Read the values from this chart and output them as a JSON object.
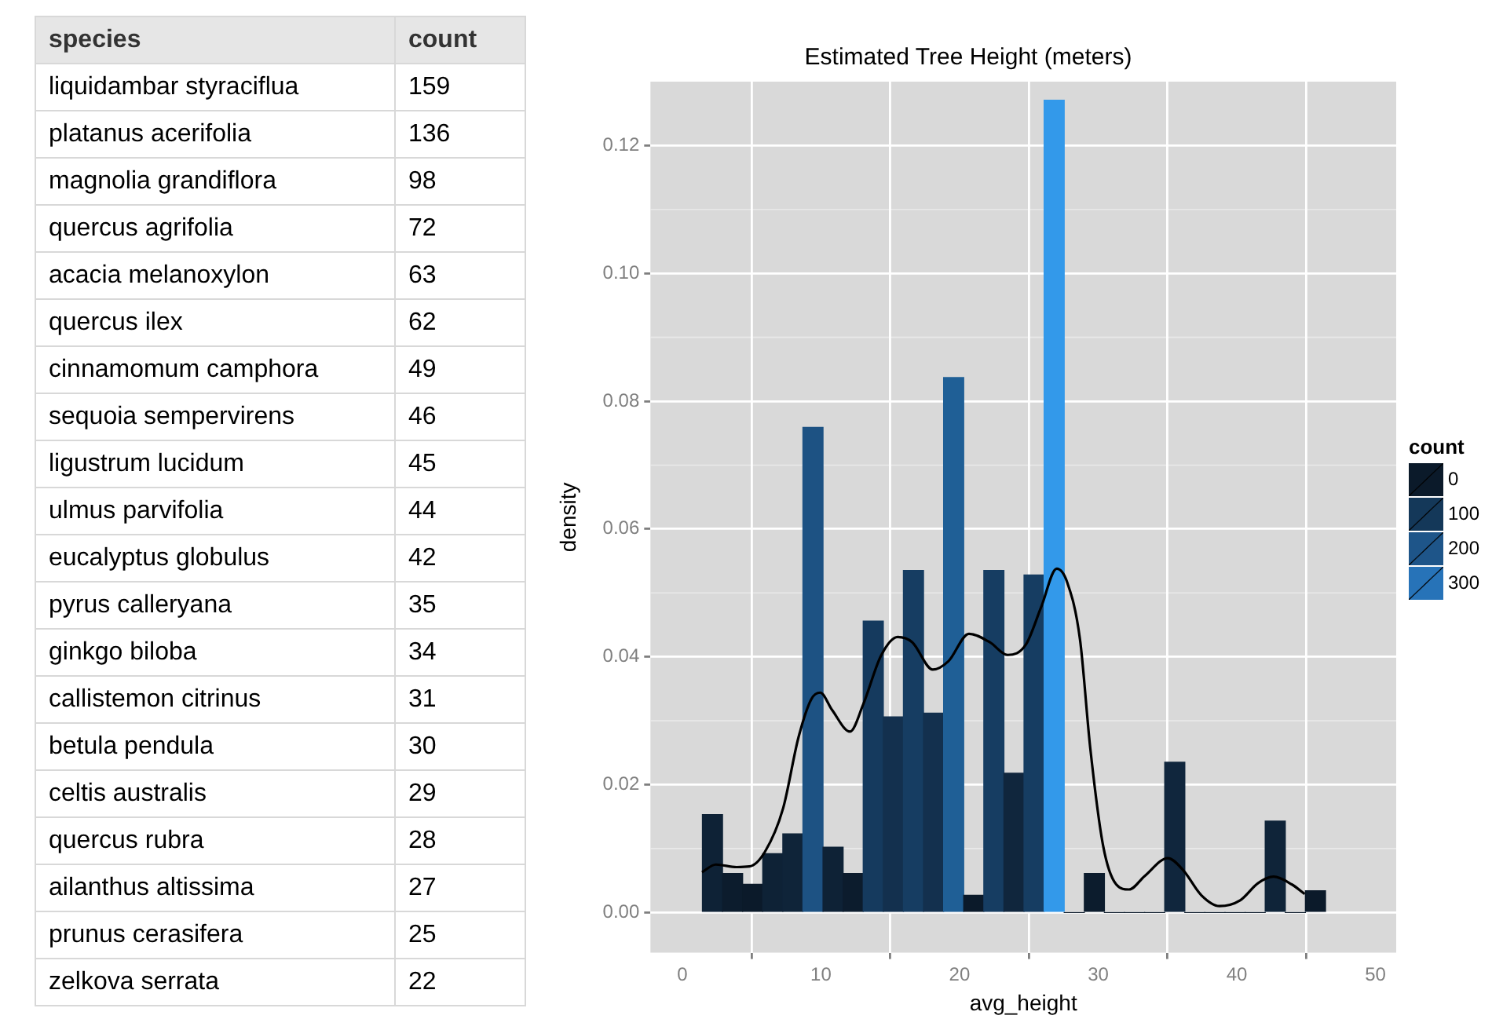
{
  "chart_data": [
    {
      "type": "other",
      "xlabel": "species",
      "ylabel": "count",
      "data_labels": true,
      "categories": [
        "liquidambar styraciflua",
        "platanus acerifolia",
        "magnolia grandiflora",
        "quercus agrifolia",
        "acacia melanoxylon",
        "quercus ilex",
        "cinnamomum camphora",
        "sequoia sempervirens",
        "ligustrum lucidum",
        "ulmus parvifolia",
        "eucalyptus globulus",
        "pyrus calleryana",
        "ginkgo biloba",
        "callistemon citrinus",
        "betula pendula",
        "celtis australis",
        "quercus rubra",
        "ailanthus altissima",
        "prunus cerasifera",
        "zelkova serrata"
      ],
      "values": [
        159,
        136,
        98,
        72,
        63,
        62,
        49,
        46,
        45,
        44,
        42,
        35,
        34,
        31,
        30,
        29,
        28,
        27,
        25,
        22
      ]
    },
    {
      "type": "histogram",
      "title": "Estimated Tree Height (meters)",
      "xlabel": "avg_height",
      "ylabel": "density",
      "clabel": "count",
      "bins": [
        1.45,
        2.9,
        4.35,
        5.8,
        7.25,
        8.7,
        10.15,
        11.6,
        13.05,
        14.5,
        15.95,
        17.4,
        18.85,
        20.3,
        21.75,
        23.2,
        24.65,
        26.1,
        27.55,
        29,
        30.45,
        31.9,
        33.35,
        34.8,
        36.25,
        37.7,
        39.15,
        40.6,
        42.05,
        43.5,
        44.95,
        46.4
      ],
      "values": [
        0.0153,
        0.0061,
        0.0044,
        0.0092,
        0.0123,
        0.0759,
        0.0102,
        0.0061,
        0.0456,
        0.0306,
        0.0535,
        0.0312,
        0.0837,
        0.0027,
        0.0535,
        0.0218,
        0.0528,
        0.1271,
        0,
        0.0061,
        0,
        0,
        0,
        0.0235,
        0,
        0,
        0,
        0,
        0.0143,
        0,
        0.0034
      ],
      "colors": [
        "#0e2236",
        "#0c1c2d",
        "#0b1a2a",
        "#0e2236",
        "#0f2439",
        "#1d5283",
        "#0e2236",
        "#0c1c2d",
        "#153a5e",
        "#13304e",
        "#163d62",
        "#13304e",
        "#1f5f96",
        "#0b1a2a",
        "#163d62",
        "#10263d",
        "#163d62",
        "#3399ea",
        "#0b1a2a",
        "#0c1c2d",
        "#0b1a2a",
        "#0b1a2a",
        "#0b1a2a",
        "#10263d",
        "#0b1a2a",
        "#0b1a2a",
        "#0b1a2a",
        "#0b1a2a",
        "#0f2439",
        "#0b1a2a",
        "#0b1a2a"
      ],
      "cticks": [
        0,
        100,
        200,
        300
      ],
      "series": [
        {
          "type": "line",
          "color": "#000000",
          "x": [
            1.42,
            2.42,
            3.91,
            4.84,
            5.96,
            7.27,
            8.38,
            9.31,
            9.95,
            10.8,
            12.1,
            13.04,
            14.34,
            15.54,
            16.58,
            18.07,
            19.19,
            20.68,
            22.17,
            23.47,
            24.78,
            25.89,
            27.01,
            27.76,
            28.69,
            29.43,
            30.36,
            31.3,
            32.23,
            33.35,
            35.02,
            36.14,
            37.44,
            38.75,
            40.24,
            41.54,
            42.66,
            43.96,
            44.9
          ],
          "values": [
            0.0063,
            0.0075,
            0.0071,
            0.0072,
            0.0095,
            0.0163,
            0.0274,
            0.0334,
            0.0344,
            0.0317,
            0.0283,
            0.0325,
            0.0402,
            0.0431,
            0.0423,
            0.038,
            0.0393,
            0.0436,
            0.0423,
            0.0403,
            0.0419,
            0.0478,
            0.0538,
            0.0517,
            0.0427,
            0.0257,
            0.0104,
            0.0044,
            0.0036,
            0.0057,
            0.0085,
            0.0066,
            0.0027,
            0.001,
            0.0019,
            0.0046,
            0.0056,
            0.0044,
            0.0029
          ]
        }
      ],
      "xlim": [
        -2.3,
        51.5
      ],
      "ylim": [
        -0.0063,
        0.13
      ],
      "xticks": [
        0,
        10,
        20,
        30,
        40,
        50
      ],
      "yticks": [
        {
          "value": 0,
          "label": "0.00"
        },
        {
          "value": 0.02,
          "label": "0.02"
        },
        {
          "value": 0.04,
          "label": "0.04"
        },
        {
          "value": 0.06,
          "label": "0.06"
        },
        {
          "value": 0.08,
          "label": "0.08"
        },
        {
          "value": 0.1,
          "label": "0.10"
        },
        {
          "value": 0.12,
          "label": "0.12"
        }
      ],
      "grid": true
    }
  ]
}
